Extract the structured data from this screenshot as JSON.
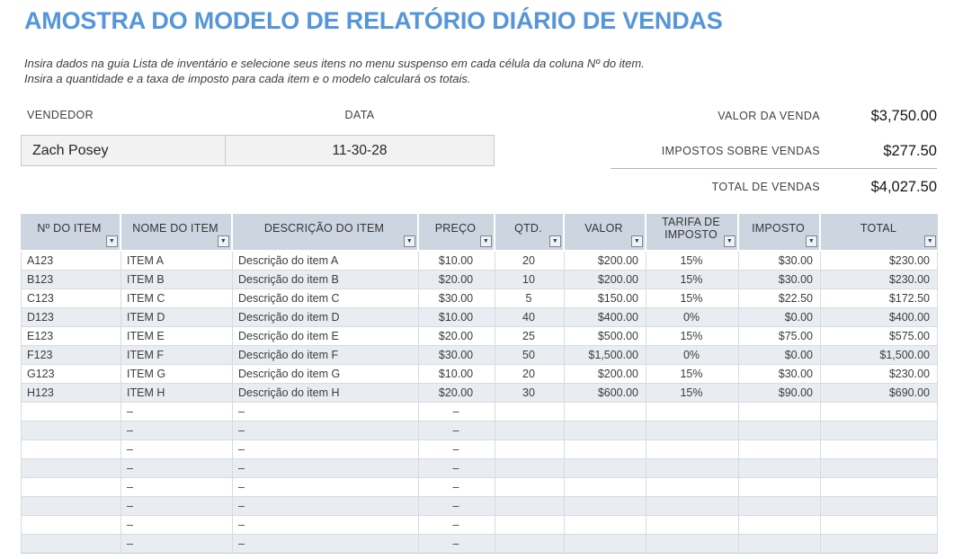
{
  "colors": {
    "accent_blue": "#5596d9",
    "header_bg": "#ccd5e0",
    "band_bg": "#e9edf2",
    "box_bg": "#f2f2f2",
    "grid": "#d6dbe1",
    "handle_blue": "#4472c4"
  },
  "page": {
    "title": "AMOSTRA DO MODELO DE RELATÓRIO DIÁRIO DE VENDAS",
    "instructions_line1": "Insira dados na guia Lista de inventário e selecione seus itens no menu suspenso em cada célula da coluna Nº do item.",
    "instructions_line2": "Insira a quantidade e a taxa de imposto para cada item e o modelo calculará os totais."
  },
  "info": {
    "vendor_label": "VENDEDOR",
    "vendor_value": "Zach Posey",
    "date_label": "DATA",
    "date_value": "11-30-28"
  },
  "summary": {
    "rows": [
      {
        "label": "VALOR DA VENDA",
        "value": "$3,750.00"
      },
      {
        "label": "IMPOSTOS SOBRE VENDAS",
        "value": "$277.50"
      },
      {
        "label": "TOTAL DE VENDAS",
        "value": "$4,027.50"
      }
    ]
  },
  "table": {
    "columns": [
      "Nº DO ITEM",
      "NOME DO ITEM",
      "DESCRIÇÃO DO ITEM",
      "PREÇO",
      "QTD.",
      "VALOR",
      "TARIFA DE IMPOSTO",
      "IMPOSTO",
      "TOTAL"
    ],
    "filter_icon": "▼",
    "rows": [
      [
        "A123",
        "ITEM A",
        "Descrição do item A",
        "$10.00",
        "20",
        "$200.00",
        "15%",
        "$30.00",
        "$230.00"
      ],
      [
        "B123",
        "ITEM B",
        "Descrição do item B",
        "$20.00",
        "10",
        "$200.00",
        "15%",
        "$30.00",
        "$230.00"
      ],
      [
        "C123",
        "ITEM C",
        "Descrição do item C",
        "$30.00",
        "5",
        "$150.00",
        "15%",
        "$22.50",
        "$172.50"
      ],
      [
        "D123",
        "ITEM D",
        "Descrição do item D",
        "$10.00",
        "40",
        "$400.00",
        "0%",
        "$0.00",
        "$400.00"
      ],
      [
        "E123",
        "ITEM E",
        "Descrição do item E",
        "$20.00",
        "25",
        "$500.00",
        "15%",
        "$75.00",
        "$575.00"
      ],
      [
        "F123",
        "ITEM F",
        "Descrição do item F",
        "$30.00",
        "50",
        "$1,500.00",
        "0%",
        "$0.00",
        "$1,500.00"
      ],
      [
        "G123",
        "ITEM G",
        "Descrição do item G",
        "$10.00",
        "20",
        "$200.00",
        "15%",
        "$30.00",
        "$230.00"
      ],
      [
        "H123",
        "ITEM H",
        "Descrição do item H",
        "$20.00",
        "30",
        "$600.00",
        "15%",
        "$90.00",
        "$690.00"
      ]
    ],
    "empty_row_template": [
      "",
      "–",
      "–",
      "–",
      "",
      "",
      "",
      "",
      ""
    ],
    "empty_row_count": 8
  }
}
